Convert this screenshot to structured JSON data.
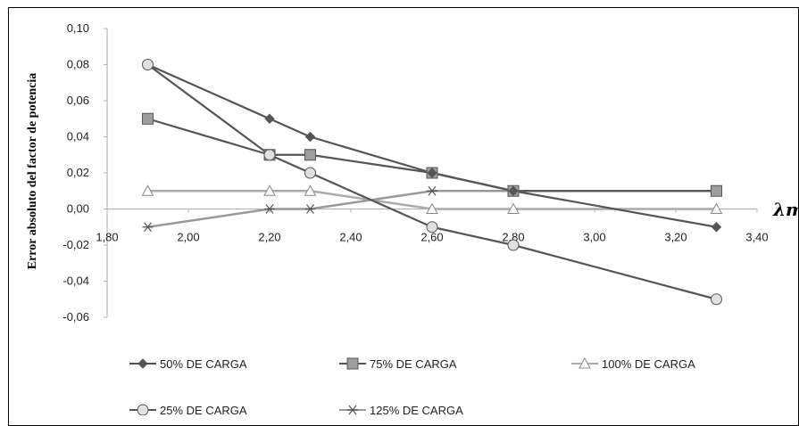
{
  "chart_data": {
    "type": "line",
    "ylabel": "Error absoluto del factor de potencia",
    "xlabel": "λm",
    "xlim": [
      1.8,
      3.4
    ],
    "ylim": [
      -0.06,
      0.1
    ],
    "x_ticks": [
      "1,80",
      "2,00",
      "2,20",
      "2,40",
      "2,60",
      "2,80",
      "3,00",
      "3,20",
      "3,40"
    ],
    "y_ticks": [
      "0,10",
      "0,08",
      "0,06",
      "0,04",
      "0,02",
      "0,00",
      "-0,02",
      "-0,04",
      "-0,06"
    ],
    "grid": false,
    "legend_position": "bottom",
    "series": [
      {
        "name": "50% DE CARGA",
        "marker": "diamond",
        "color": "#555555",
        "x": [
          1.9,
          2.2,
          2.3,
          2.6,
          2.8,
          3.3
        ],
        "y": [
          0.08,
          0.05,
          0.04,
          0.02,
          0.01,
          -0.01
        ]
      },
      {
        "name": "75% DE CARGA",
        "marker": "square",
        "color": "#555555",
        "x": [
          1.9,
          2.2,
          2.3,
          2.6,
          2.8,
          3.3
        ],
        "y": [
          0.05,
          0.03,
          0.03,
          0.02,
          0.01,
          0.01
        ]
      },
      {
        "name": "100% DE CARGA",
        "marker": "triangle",
        "color": "#aaaaaa",
        "x": [
          1.9,
          2.2,
          2.3,
          2.6,
          2.8,
          3.3
        ],
        "y": [
          0.01,
          0.01,
          0.01,
          0.0,
          0.0,
          0.0
        ]
      },
      {
        "name": "25% DE CARGA",
        "marker": "circle",
        "color": "#555555",
        "x": [
          1.9,
          2.2,
          2.3,
          2.6,
          2.8,
          3.3
        ],
        "y": [
          0.08,
          0.03,
          0.02,
          -0.01,
          -0.02,
          -0.05
        ]
      },
      {
        "name": "125% DE CARGA",
        "marker": "star",
        "color": "#999999",
        "x": [
          1.9,
          2.2,
          2.3,
          2.6,
          2.8,
          3.3
        ],
        "y": [
          -0.01,
          0.0,
          0.0,
          0.01,
          0.01,
          0.01
        ]
      }
    ]
  }
}
